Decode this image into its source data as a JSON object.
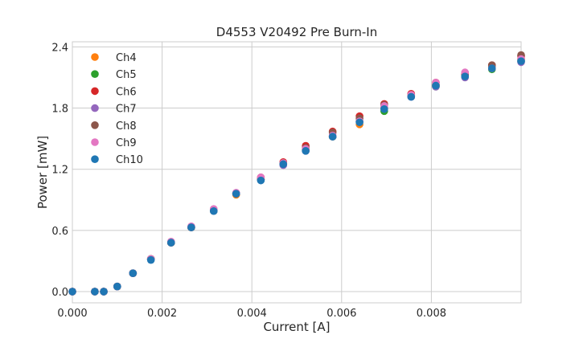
{
  "chart_data": {
    "type": "scatter",
    "title": "D4553 V20492 Pre Burn-In",
    "xlabel": "Current [A]",
    "ylabel": "Power [mW]",
    "xlim": [
      0,
      0.01
    ],
    "ylim": [
      -0.11,
      2.45
    ],
    "xticks": [
      0,
      0.002,
      0.004,
      0.006,
      0.008
    ],
    "xtick_labels": [
      "0.000",
      "0.002",
      "0.004",
      "0.006",
      "0.008"
    ],
    "yticks": [
      0,
      0.6,
      1.2,
      1.8,
      2.4
    ],
    "ytick_labels": [
      "0.0",
      "0.6",
      "1.2",
      "1.8",
      "2.4"
    ],
    "grid": true,
    "legend_position": "top-left",
    "x": [
      0,
      0.0005,
      0.0007,
      0.001,
      0.00135,
      0.00175,
      0.0022,
      0.00265,
      0.00315,
      0.00365,
      0.0042,
      0.0047,
      0.0052,
      0.0058,
      0.0064,
      0.00695,
      0.00755,
      0.0081,
      0.00875,
      0.00935,
      0.01
    ],
    "series": [
      {
        "name": "Ch4",
        "color": "#ff7f0e",
        "values": [
          0,
          0,
          0,
          0.05,
          0.18,
          0.32,
          0.48,
          0.63,
          0.8,
          0.95,
          1.1,
          1.25,
          1.39,
          1.52,
          1.64,
          1.8,
          1.92,
          2.02,
          2.12,
          2.2,
          2.28
        ]
      },
      {
        "name": "Ch5",
        "color": "#2ca02c",
        "values": [
          0,
          0,
          0,
          0.05,
          0.18,
          0.32,
          0.48,
          0.63,
          0.79,
          0.96,
          1.1,
          1.25,
          1.39,
          1.52,
          1.67,
          1.77,
          1.92,
          2.01,
          2.12,
          2.18,
          2.26
        ]
      },
      {
        "name": "Ch6",
        "color": "#d62728",
        "values": [
          0,
          0,
          0,
          0.05,
          0.18,
          0.32,
          0.48,
          0.63,
          0.8,
          0.96,
          1.12,
          1.27,
          1.43,
          1.57,
          1.72,
          1.84,
          1.94,
          2.05,
          2.13,
          2.22,
          2.31
        ]
      },
      {
        "name": "Ch7",
        "color": "#9467bd",
        "values": [
          0,
          0,
          0,
          0.05,
          0.18,
          0.32,
          0.48,
          0.63,
          0.79,
          0.96,
          1.1,
          1.24,
          1.38,
          1.52,
          1.67,
          1.8,
          1.91,
          2.01,
          2.1,
          2.19,
          2.25
        ]
      },
      {
        "name": "Ch8",
        "color": "#8c564b",
        "values": [
          0,
          0,
          0,
          0.05,
          0.18,
          0.32,
          0.48,
          0.63,
          0.8,
          0.96,
          1.1,
          1.26,
          1.41,
          1.56,
          1.7,
          1.83,
          1.93,
          2.03,
          2.12,
          2.22,
          2.32
        ]
      },
      {
        "name": "Ch9",
        "color": "#e377c2",
        "values": [
          0,
          0,
          0,
          0.05,
          0.18,
          0.32,
          0.49,
          0.64,
          0.81,
          0.97,
          1.12,
          1.26,
          1.4,
          1.53,
          1.67,
          1.82,
          1.93,
          2.05,
          2.15,
          2.19,
          2.28
        ]
      },
      {
        "name": "Ch10",
        "color": "#1f77b4",
        "values": [
          0,
          0,
          0,
          0.05,
          0.18,
          0.31,
          0.48,
          0.63,
          0.79,
          0.96,
          1.09,
          1.25,
          1.38,
          1.52,
          1.66,
          1.79,
          1.91,
          2.02,
          2.11,
          2.19,
          2.26
        ]
      }
    ]
  }
}
